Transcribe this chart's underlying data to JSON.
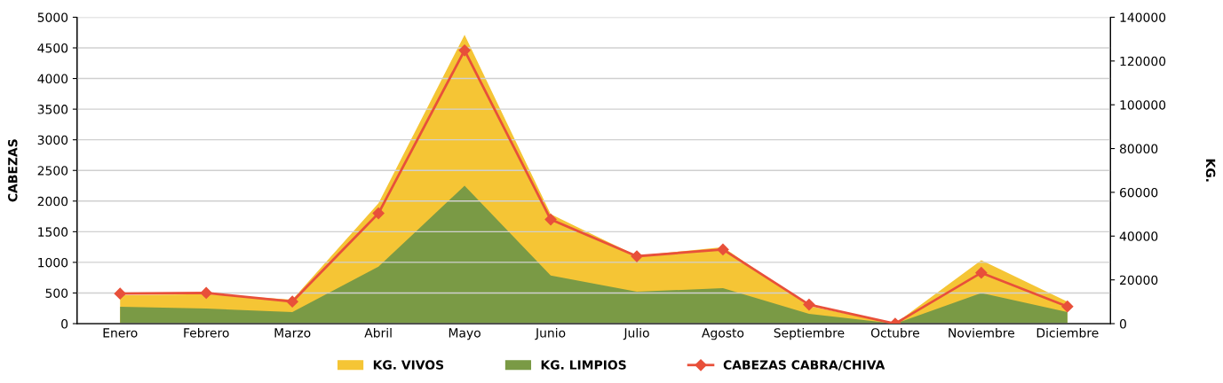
{
  "chart_data": {
    "type": "area",
    "ylabel": "CABEZAS",
    "y2label": "KG.",
    "categories": [
      "Enero",
      "Febrero",
      "Marzo",
      "Abril",
      "Mayo",
      "Junio",
      "Julio",
      "Agosto",
      "Septiembre",
      "Octubre",
      "Noviembre",
      "Diciembre"
    ],
    "series": [
      {
        "name": "KG. VIVOS",
        "axis": "y2",
        "color": "#f5c535",
        "values": [
          13000,
          13500,
          11000,
          55000,
          132000,
          50000,
          31000,
          35000,
          8000,
          0,
          29000,
          10000
        ]
      },
      {
        "name": "KG. LIMPIOS",
        "axis": "y2",
        "color": "#7a9a45",
        "values": [
          7700,
          6900,
          5300,
          26000,
          63000,
          22000,
          14600,
          16200,
          4500,
          0,
          14000,
          5300
        ]
      },
      {
        "name": "CABEZAS CABRA/CHIVA",
        "type": "line",
        "color": "#e8503a",
        "marker": "diamond",
        "values": [
          490,
          500,
          360,
          1800,
          4460,
          1700,
          1100,
          1210,
          310,
          0,
          830,
          280
        ]
      }
    ],
    "ylim": [
      0,
      5000
    ],
    "yticks": [
      0,
      500,
      1000,
      1500,
      2000,
      2500,
      3000,
      3500,
      4000,
      4500,
      5000
    ],
    "y2lim": [
      0,
      140000
    ],
    "y2ticks": [
      0,
      20000,
      40000,
      60000,
      80000,
      100000,
      120000,
      140000
    ],
    "grid": "y",
    "legend": "bottom"
  }
}
